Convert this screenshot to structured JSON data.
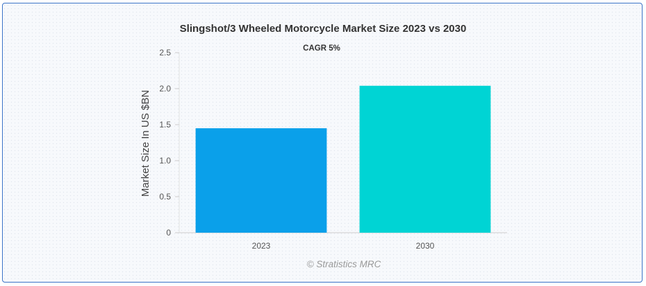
{
  "chart_data": {
    "type": "bar",
    "title": "Slingshot/3 Wheeled Motorcycle Market Size 2023 vs 2030",
    "subtitle": "CAGR 5%",
    "xlabel": "",
    "ylabel": "Market Size In US $BN",
    "categories": [
      "2023",
      "2030"
    ],
    "values": [
      1.45,
      2.04
    ],
    "colors": [
      "#0aa0ea",
      "#00d4d4"
    ],
    "ylim": [
      0,
      2.5
    ],
    "yticks": [
      "0",
      "0.5",
      "1.0",
      "1.5",
      "2.0",
      "2.5"
    ],
    "ytick_values": [
      0,
      0.5,
      1.0,
      1.5,
      2.0,
      2.5
    ],
    "grid": false,
    "legend": "none",
    "credit": "© Stratistics MRC"
  }
}
